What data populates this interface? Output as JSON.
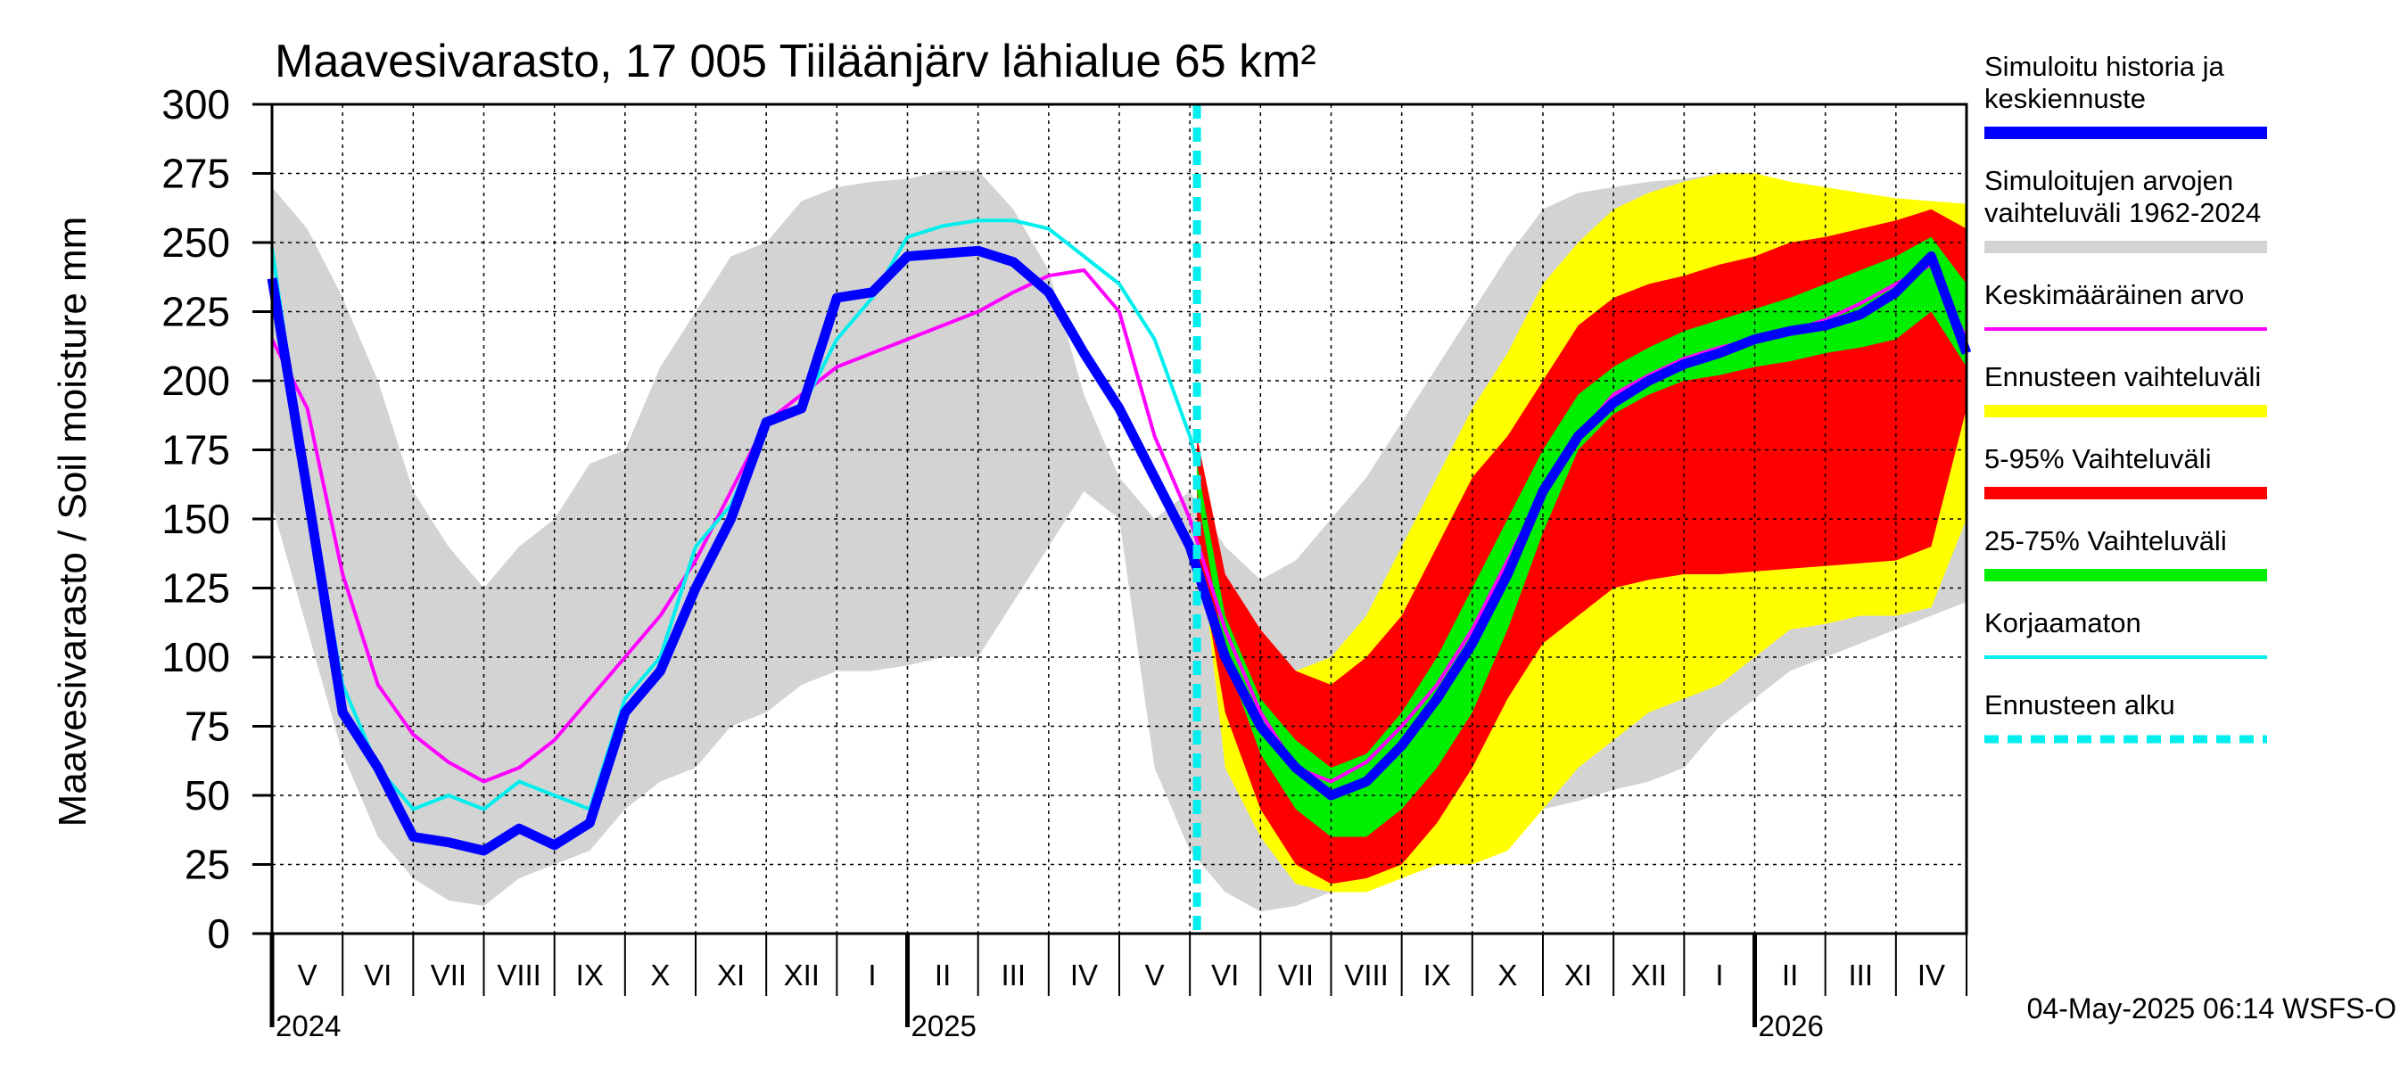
{
  "title": "Maavesivarasto, 17 005 Tiiläänjärv lähialue 65 km²",
  "y_axis_label": "Maavesivarasto / Soil moisture   mm",
  "timestamp": "04-May-2025 06:14 WSFS-O",
  "colors": {
    "history": "#0000ff",
    "range_hist": "#d3d3d3",
    "mean": "#ff00ff",
    "forecast_range": "#ffff00",
    "p5_95": "#ff0000",
    "p25_75": "#00ee00",
    "uncorrected": "#00eeee",
    "forecast_start": "#00eeee"
  },
  "legend": [
    {
      "key": "history",
      "label": "Simuloitu historia ja keskiennuste",
      "lines": [
        "Simuloitu historia ja",
        "keskiennuste"
      ]
    },
    {
      "key": "range_hist",
      "label": "Simuloitujen arvojen vaihteluväli 1962-2024",
      "lines": [
        "Simuloitujen arvojen",
        "vaihteluväli 1962-2024"
      ]
    },
    {
      "key": "mean",
      "label": "Keskimääräinen arvo",
      "lines": [
        "Keskimääräinen arvo"
      ]
    },
    {
      "key": "forecast_range",
      "label": "Ennusteen vaihteluväli",
      "lines": [
        "Ennusteen vaihteluväli"
      ]
    },
    {
      "key": "p5_95",
      "label": "5-95% Vaihteluväli",
      "lines": [
        "5-95% Vaihteluväli"
      ]
    },
    {
      "key": "p25_75",
      "label": "25-75% Vaihteluväli",
      "lines": [
        "25-75% Vaihteluväli"
      ]
    },
    {
      "key": "uncorrected",
      "label": "Korjaamaton",
      "lines": [
        "Korjaamaton"
      ]
    },
    {
      "key": "forecast_start",
      "label": "Ennusteen alku",
      "lines": [
        "Ennusteen alku"
      ]
    }
  ],
  "chart_data": {
    "type": "area",
    "title": "Maavesivarasto, 17 005 Tiiläänjärv lähialue 65 km²",
    "ylabel": "Maavesivarasto / Soil moisture   mm",
    "xlabel": "",
    "ylim": [
      0,
      300
    ],
    "yticks": [
      0,
      25,
      50,
      75,
      100,
      125,
      150,
      175,
      200,
      225,
      250,
      275,
      300
    ],
    "x_unit": "months since 2024-04-01",
    "xlim": [
      0,
      24
    ],
    "grid": true,
    "month_labels": [
      "V",
      "VI",
      "VII",
      "VIII",
      "IX",
      "X",
      "XI",
      "XII",
      "I",
      "II",
      "III",
      "IV",
      "V",
      "VI",
      "VII",
      "VIII",
      "IX",
      "X",
      "XI",
      "XII",
      "I",
      "II",
      "III",
      "IV"
    ],
    "years": [
      {
        "label": "2024",
        "month": 0
      },
      {
        "label": "2025",
        "month": 9
      },
      {
        "label": "2026",
        "month": 21
      }
    ],
    "forecast_start": 13.1,
    "history_range": {
      "x": [
        0,
        0.5,
        1,
        1.5,
        2,
        2.5,
        3,
        3.5,
        4,
        4.5,
        5,
        5.5,
        6,
        6.5,
        7,
        7.5,
        8,
        8.5,
        9,
        9.5,
        10,
        10.5,
        11,
        11.5,
        12,
        12.5,
        13,
        13.5,
        14,
        14.5,
        15,
        15.5,
        16,
        16.5,
        17,
        17.5,
        18,
        18.5,
        19,
        19.5,
        20,
        20.5,
        21,
        21.5,
        22,
        22.5,
        23,
        23.5,
        24
      ],
      "upper": [
        270,
        255,
        230,
        200,
        160,
        140,
        125,
        140,
        150,
        170,
        175,
        205,
        225,
        245,
        250,
        265,
        270,
        272,
        273,
        276,
        276,
        262,
        240,
        195,
        165,
        150,
        160,
        140,
        128,
        135,
        150,
        165,
        185,
        205,
        225,
        245,
        262,
        268,
        270,
        272,
        273,
        275,
        272,
        268,
        266,
        264,
        262,
        262,
        260
      ],
      "lower": [
        155,
        110,
        65,
        35,
        20,
        12,
        10,
        20,
        25,
        30,
        45,
        55,
        60,
        75,
        80,
        90,
        95,
        95,
        97,
        100,
        100,
        120,
        140,
        160,
        150,
        60,
        30,
        15,
        8,
        10,
        15,
        22,
        30,
        35,
        40,
        42,
        45,
        48,
        52,
        55,
        60,
        75,
        85,
        95,
        100,
        105,
        110,
        115,
        120
      ]
    },
    "forecast_range": {
      "x": [
        13.1,
        13.5,
        14,
        14.5,
        15,
        15.5,
        16,
        16.5,
        17,
        17.5,
        18,
        18.5,
        19,
        19.5,
        20,
        20.5,
        21,
        21.5,
        22,
        22.5,
        23,
        23.5,
        24
      ],
      "upper": [
        175,
        125,
        105,
        95,
        100,
        115,
        140,
        165,
        190,
        210,
        235,
        250,
        262,
        268,
        272,
        275,
        275,
        272,
        270,
        268,
        266,
        265,
        264
      ],
      "lower": [
        150,
        60,
        35,
        18,
        15,
        15,
        20,
        25,
        25,
        30,
        45,
        60,
        70,
        80,
        85,
        90,
        100,
        110,
        112,
        115,
        115,
        118,
        150
      ]
    },
    "p5_95": {
      "x": [
        13.1,
        13.5,
        14,
        14.5,
        15,
        15.5,
        16,
        16.5,
        17,
        17.5,
        18,
        18.5,
        19,
        19.5,
        20,
        20.5,
        21,
        21.5,
        22,
        22.5,
        23,
        23.5,
        24
      ],
      "upper": [
        180,
        130,
        110,
        95,
        90,
        100,
        115,
        140,
        165,
        180,
        200,
        220,
        230,
        235,
        238,
        242,
        245,
        250,
        252,
        255,
        258,
        262,
        255
      ],
      "lower": [
        140,
        80,
        45,
        25,
        18,
        20,
        25,
        40,
        60,
        85,
        105,
        115,
        125,
        128,
        130,
        130,
        131,
        132,
        133,
        134,
        135,
        140,
        190
      ]
    },
    "p25_75": {
      "x": [
        13.1,
        13.5,
        14,
        14.5,
        15,
        15.5,
        16,
        16.5,
        17,
        17.5,
        18,
        18.5,
        19,
        19.5,
        20,
        20.5,
        21,
        21.5,
        22,
        22.5,
        23,
        23.5,
        24
      ],
      "upper": [
        170,
        115,
        85,
        70,
        60,
        65,
        80,
        100,
        125,
        150,
        175,
        195,
        205,
        212,
        218,
        222,
        226,
        230,
        235,
        240,
        245,
        252,
        235
      ],
      "lower": [
        160,
        100,
        65,
        45,
        35,
        35,
        45,
        60,
        80,
        110,
        145,
        175,
        188,
        195,
        200,
        202,
        205,
        207,
        210,
        212,
        215,
        225,
        205
      ]
    },
    "series": [
      {
        "name": "Keskimääräinen arvo",
        "key": "mean",
        "x": [
          0,
          0.5,
          1,
          1.5,
          2,
          2.5,
          3,
          3.5,
          4,
          4.5,
          5,
          5.5,
          6,
          6.5,
          7,
          7.5,
          8,
          8.5,
          9,
          9.5,
          10,
          10.5,
          11,
          11.5,
          12,
          12.5,
          13,
          13.5,
          14,
          14.5,
          15,
          15.5,
          16,
          16.5,
          17,
          17.5,
          18,
          18.5,
          19,
          19.5,
          20,
          20.5,
          21,
          21.5,
          22,
          22.5,
          23,
          23.5,
          24
        ],
        "y": [
          215,
          190,
          130,
          90,
          72,
          62,
          55,
          60,
          70,
          85,
          100,
          115,
          135,
          160,
          185,
          195,
          205,
          210,
          215,
          220,
          225,
          232,
          238,
          240,
          225,
          180,
          150,
          110,
          80,
          60,
          55,
          62,
          75,
          90,
          110,
          135,
          160,
          180,
          195,
          202,
          208,
          212,
          215,
          218,
          222,
          228,
          235,
          242,
          215
        ]
      },
      {
        "name": "Korjaamaton",
        "key": "uncorrected",
        "x": [
          0,
          0.5,
          1,
          1.5,
          2,
          2.5,
          3,
          3.5,
          4,
          4.5,
          5,
          5.5,
          6,
          6.5,
          7,
          7.5,
          8,
          8.5,
          9,
          9.5,
          10,
          10.5,
          11,
          11.5,
          12,
          12.5,
          13,
          13.1
        ],
        "y": [
          248,
          160,
          90,
          60,
          45,
          50,
          45,
          55,
          50,
          45,
          85,
          100,
          140,
          155,
          185,
          190,
          215,
          230,
          252,
          256,
          258,
          258,
          255,
          245,
          235,
          215,
          180,
          170
        ]
      },
      {
        "name": "Simuloitu historia ja keskiennuste",
        "key": "history",
        "x": [
          0,
          0.5,
          1,
          1.5,
          2,
          2.5,
          3,
          3.5,
          4,
          4.5,
          5,
          5.5,
          6,
          6.5,
          7,
          7.5,
          8,
          8.5,
          9,
          9.5,
          10,
          10.5,
          11,
          11.5,
          12,
          12.5,
          13,
          13.5,
          14,
          14.5,
          15,
          15.5,
          16,
          16.5,
          17,
          17.5,
          18,
          18.5,
          19,
          19.5,
          20,
          20.5,
          21,
          21.5,
          22,
          22.5,
          23,
          23.5,
          24
        ],
        "y": [
          237,
          160,
          80,
          60,
          35,
          33,
          30,
          38,
          32,
          40,
          80,
          95,
          125,
          150,
          185,
          190,
          230,
          232,
          245,
          246,
          247,
          243,
          232,
          210,
          190,
          165,
          140,
          100,
          75,
          60,
          50,
          55,
          68,
          85,
          105,
          130,
          160,
          180,
          192,
          200,
          206,
          210,
          215,
          218,
          220,
          224,
          232,
          245,
          210
        ]
      }
    ]
  }
}
